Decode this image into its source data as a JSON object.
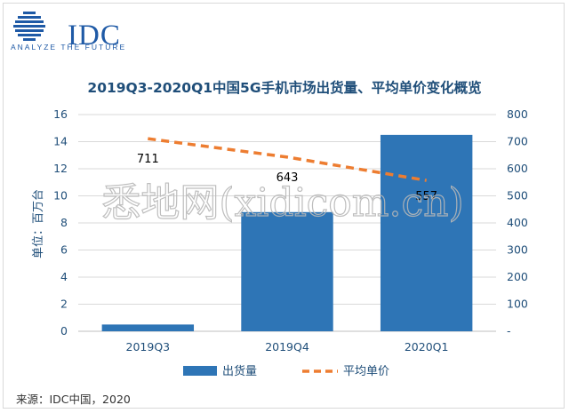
{
  "logo": {
    "name": "IDC",
    "tagline": "ANALYZE THE FUTURE",
    "brand_color": "#1f5aa6"
  },
  "chart_data": {
    "type": "bar",
    "title": "2019Q3-2020Q1中国5G手机市场出货量、平均单价变化概览",
    "categories": [
      "2019Q3",
      "2019Q4",
      "2020Q1"
    ],
    "series": [
      {
        "name": "出货量",
        "type": "bar",
        "axis": "left",
        "values": [
          0.5,
          8.8,
          14.5
        ],
        "color": "#2e75b6"
      },
      {
        "name": "平均单价",
        "type": "line",
        "axis": "right",
        "style": "dashed",
        "values": [
          711,
          643,
          557
        ],
        "color": "#ed7d31"
      }
    ],
    "ylabel": "单位：百万台",
    "y_left": {
      "range": [
        0,
        16
      ],
      "ticks": [
        "0",
        "2",
        "4",
        "6",
        "8",
        "10",
        "12",
        "14",
        "16"
      ]
    },
    "y_right": {
      "range": [
        0,
        800
      ],
      "ticks": [
        "-",
        "100",
        "200",
        "300",
        "400",
        "500",
        "600",
        "700",
        "800"
      ]
    },
    "data_labels": [
      "711",
      "643",
      "557"
    ],
    "legend_position": "bottom",
    "grid": true,
    "watermark": "悉地网(xidicom.cn)"
  },
  "source": "来源：IDC中国，2020"
}
